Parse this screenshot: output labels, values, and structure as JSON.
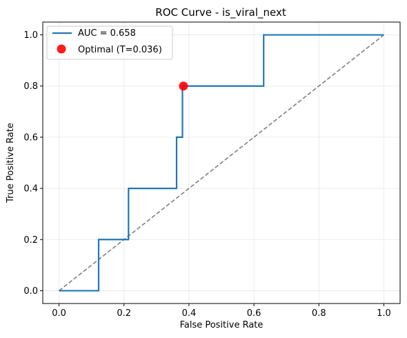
{
  "chart_data": {
    "type": "line",
    "title": "ROC Curve - is_viral_next",
    "xlabel": "False Positive Rate",
    "ylabel": "True Positive Rate",
    "xlim": [
      -0.05,
      1.05
    ],
    "ylim": [
      -0.05,
      1.05
    ],
    "xticks": [
      0.0,
      0.2,
      0.4,
      0.6,
      0.8,
      1.0
    ],
    "yticks": [
      0.0,
      0.2,
      0.4,
      0.6,
      0.8,
      1.0
    ],
    "xtick_labels": [
      "0.0",
      "0.2",
      "0.4",
      "0.6",
      "0.8",
      "1.0"
    ],
    "ytick_labels": [
      "0.0",
      "0.2",
      "0.4",
      "0.6",
      "0.8",
      "1.0"
    ],
    "grid": true,
    "legend_position": "top-left",
    "series": [
      {
        "name": "AUC = 0.658",
        "kind": "roc",
        "color": "#1f77b4",
        "x": [
          0.0,
          0.122,
          0.122,
          0.214,
          0.214,
          0.362,
          0.362,
          0.38,
          0.38,
          0.383,
          0.383,
          0.63,
          0.63,
          1.0
        ],
        "y": [
          0.0,
          0.0,
          0.2,
          0.2,
          0.4,
          0.4,
          0.6,
          0.6,
          0.8,
          0.8,
          0.8,
          0.8,
          1.0,
          1.0
        ]
      },
      {
        "name": "",
        "kind": "diagonal",
        "color": "#7f7f7f",
        "dashed": true,
        "x": [
          0.0,
          1.0
        ],
        "y": [
          0.0,
          1.0
        ]
      }
    ],
    "points": [
      {
        "name": "Optimal (T=0.036)",
        "color": "#ff0000",
        "x": 0.383,
        "y": 0.8
      }
    ]
  }
}
